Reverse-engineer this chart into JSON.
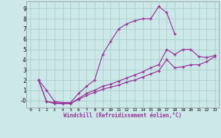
{
  "bg_color": "#cce8e8",
  "grid_color": "#aacccc",
  "line_color": "#993399",
  "title": "Windchill (Refroidissement éolien,°C)",
  "xlim": [
    -0.5,
    23.5
  ],
  "ylim": [
    -0.7,
    9.7
  ],
  "xticks": [
    0,
    1,
    2,
    3,
    4,
    5,
    6,
    7,
    8,
    9,
    10,
    11,
    12,
    13,
    14,
    15,
    16,
    17,
    18,
    19,
    20,
    21,
    22,
    23
  ],
  "yticks": [
    0,
    1,
    2,
    3,
    4,
    5,
    6,
    7,
    8,
    9
  ],
  "line1_x": [
    1,
    2,
    3,
    4,
    5,
    6,
    7,
    8,
    9,
    10,
    11,
    12,
    13,
    14,
    15,
    16,
    17,
    18
  ],
  "line1_y": [
    2.0,
    1.0,
    -0.1,
    -0.2,
    -0.2,
    0.7,
    1.4,
    2.0,
    4.5,
    5.8,
    7.0,
    7.5,
    7.8,
    8.0,
    8.0,
    9.2,
    8.6,
    6.5
  ],
  "line2_x": [
    1,
    2,
    3,
    4,
    5,
    6,
    7,
    8,
    9,
    10,
    11,
    12,
    13,
    14,
    15,
    16,
    17,
    18,
    19,
    20,
    21,
    22,
    23
  ],
  "line2_y": [
    2.0,
    -0.1,
    -0.2,
    -0.3,
    -0.3,
    0.2,
    0.7,
    1.0,
    1.4,
    1.6,
    1.9,
    2.2,
    2.5,
    2.8,
    3.2,
    3.5,
    5.0,
    4.5,
    5.0,
    5.0,
    4.3,
    4.2,
    4.4
  ],
  "line3_x": [
    1,
    2,
    3,
    4,
    5,
    6,
    7,
    8,
    9,
    10,
    11,
    12,
    13,
    14,
    15,
    16,
    17,
    18,
    19,
    20,
    21,
    22,
    23
  ],
  "line3_y": [
    2.0,
    -0.1,
    -0.3,
    -0.3,
    -0.3,
    0.1,
    0.5,
    0.8,
    1.1,
    1.3,
    1.5,
    1.8,
    2.0,
    2.3,
    2.6,
    2.9,
    4.0,
    3.2,
    3.3,
    3.5,
    3.5,
    3.8,
    4.3
  ]
}
